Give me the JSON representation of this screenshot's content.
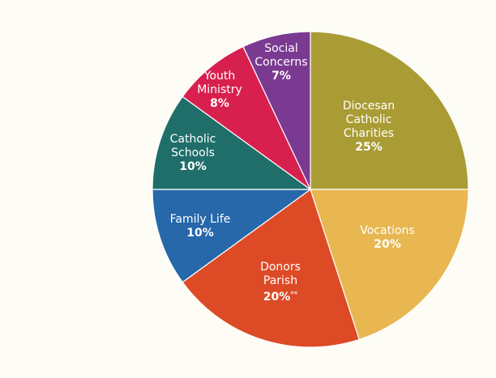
{
  "chart_data": {
    "type": "pie",
    "title": "",
    "start_angle_deg": 0,
    "direction": "clockwise",
    "slices": [
      {
        "label_lines": [
          "Diocesan",
          "Catholic",
          "Charities"
        ],
        "pct_text": "25%",
        "note": "",
        "value": 25,
        "color": "#aa9c35"
      },
      {
        "label_lines": [
          "Vocations"
        ],
        "pct_text": "20%",
        "note": "",
        "value": 20,
        "color": "#e8b751"
      },
      {
        "label_lines": [
          "Donors",
          "Parish"
        ],
        "pct_text": "20%",
        "note": "**",
        "value": 20,
        "color": "#dc4b26"
      },
      {
        "label_lines": [
          "Family Life"
        ],
        "pct_text": "10%",
        "note": "",
        "value": 10,
        "color": "#2668a9"
      },
      {
        "label_lines": [
          "Catholic",
          "Schools"
        ],
        "pct_text": "10%",
        "note": "",
        "value": 10,
        "color": "#1f6e6a"
      },
      {
        "label_lines": [
          "Youth",
          "Ministry"
        ],
        "pct_text": "8%",
        "note": "",
        "value": 8,
        "color": "#d8204e"
      },
      {
        "label_lines": [
          "Social",
          "Concerns"
        ],
        "pct_text": "7%",
        "note": "",
        "value": 7,
        "color": "#7b3a91"
      }
    ]
  }
}
